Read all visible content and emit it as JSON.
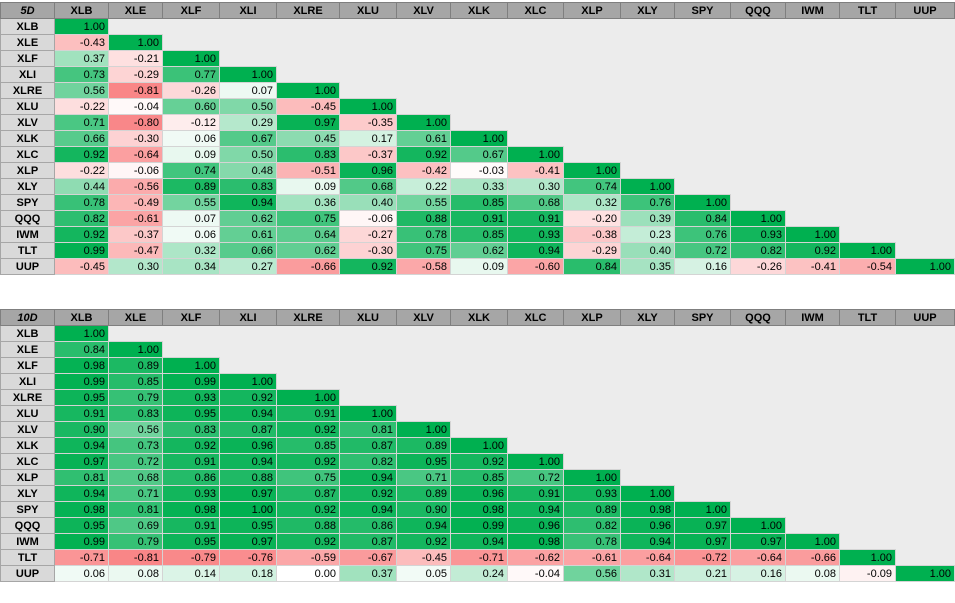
{
  "tickers": [
    "XLB",
    "XLE",
    "XLF",
    "XLI",
    "XLRE",
    "XLU",
    "XLV",
    "XLK",
    "XLC",
    "XLP",
    "XLY",
    "SPY",
    "QQQ",
    "IWM",
    "TLT",
    "UUP"
  ],
  "colors": {
    "header_bg": "#a6a6a6",
    "row_label_bg": "#d9d9d9",
    "empty_bg": "#ececec",
    "positive": "#00b050",
    "negative": "#f8696b",
    "neutral": "#ffffff"
  },
  "tables": [
    {
      "period_label": "5D",
      "rows": [
        [
          "1.00"
        ],
        [
          "-0.43",
          "1.00"
        ],
        [
          "0.37",
          "-0.21",
          "1.00"
        ],
        [
          "0.73",
          "-0.29",
          "0.77",
          "1.00"
        ],
        [
          "0.56",
          "-0.81",
          "-0.26",
          "0.07",
          "1.00"
        ],
        [
          "-0.22",
          "-0.04",
          "0.60",
          "0.50",
          "-0.45",
          "1.00"
        ],
        [
          "0.71",
          "-0.80",
          "-0.12",
          "0.29",
          "0.97",
          "-0.35",
          "1.00"
        ],
        [
          "0.66",
          "-0.30",
          "0.06",
          "0.67",
          "0.45",
          "0.17",
          "0.61",
          "1.00"
        ],
        [
          "0.92",
          "-0.64",
          "0.09",
          "0.50",
          "0.83",
          "-0.37",
          "0.92",
          "0.67",
          "1.00"
        ],
        [
          "-0.22",
          "-0.06",
          "0.74",
          "0.48",
          "-0.51",
          "0.96",
          "-0.42",
          "-0.03",
          "-0.41",
          "1.00"
        ],
        [
          "0.44",
          "-0.56",
          "0.89",
          "0.83",
          "0.09",
          "0.68",
          "0.22",
          "0.33",
          "0.30",
          "0.74",
          "1.00"
        ],
        [
          "0.78",
          "-0.49",
          "0.55",
          "0.94",
          "0.36",
          "0.40",
          "0.55",
          "0.85",
          "0.68",
          "0.32",
          "0.76",
          "1.00"
        ],
        [
          "0.82",
          "-0.61",
          "0.07",
          "0.62",
          "0.75",
          "-0.06",
          "0.88",
          "0.91",
          "0.91",
          "-0.20",
          "0.39",
          "0.84",
          "1.00"
        ],
        [
          "0.92",
          "-0.37",
          "0.06",
          "0.61",
          "0.64",
          "-0.27",
          "0.78",
          "0.85",
          "0.93",
          "-0.38",
          "0.23",
          "0.76",
          "0.93",
          "1.00"
        ],
        [
          "0.99",
          "-0.47",
          "0.32",
          "0.66",
          "0.62",
          "-0.30",
          "0.75",
          "0.62",
          "0.94",
          "-0.29",
          "0.40",
          "0.72",
          "0.82",
          "0.92",
          "1.00"
        ],
        [
          "-0.45",
          "0.30",
          "0.34",
          "0.27",
          "-0.66",
          "0.92",
          "-0.58",
          "0.09",
          "-0.60",
          "0.84",
          "0.35",
          "0.16",
          "-0.26",
          "-0.41",
          "-0.54",
          "1.00"
        ]
      ]
    },
    {
      "period_label": "10D",
      "rows": [
        [
          "1.00"
        ],
        [
          "0.84",
          "1.00"
        ],
        [
          "0.98",
          "0.89",
          "1.00"
        ],
        [
          "0.99",
          "0.85",
          "0.99",
          "1.00"
        ],
        [
          "0.95",
          "0.79",
          "0.93",
          "0.92",
          "1.00"
        ],
        [
          "0.91",
          "0.83",
          "0.95",
          "0.94",
          "0.91",
          "1.00"
        ],
        [
          "0.90",
          "0.56",
          "0.83",
          "0.87",
          "0.92",
          "0.81",
          "1.00"
        ],
        [
          "0.94",
          "0.73",
          "0.92",
          "0.96",
          "0.85",
          "0.87",
          "0.89",
          "1.00"
        ],
        [
          "0.97",
          "0.72",
          "0.91",
          "0.94",
          "0.92",
          "0.82",
          "0.95",
          "0.92",
          "1.00"
        ],
        [
          "0.81",
          "0.68",
          "0.86",
          "0.88",
          "0.75",
          "0.94",
          "0.71",
          "0.85",
          "0.72",
          "1.00"
        ],
        [
          "0.94",
          "0.71",
          "0.93",
          "0.97",
          "0.87",
          "0.92",
          "0.89",
          "0.96",
          "0.91",
          "0.93",
          "1.00"
        ],
        [
          "0.98",
          "0.81",
          "0.98",
          "1.00",
          "0.92",
          "0.94",
          "0.90",
          "0.98",
          "0.94",
          "0.89",
          "0.98",
          "1.00"
        ],
        [
          "0.95",
          "0.69",
          "0.91",
          "0.95",
          "0.88",
          "0.86",
          "0.94",
          "0.99",
          "0.96",
          "0.82",
          "0.96",
          "0.97",
          "1.00"
        ],
        [
          "0.99",
          "0.79",
          "0.95",
          "0.97",
          "0.92",
          "0.87",
          "0.92",
          "0.94",
          "0.98",
          "0.78",
          "0.94",
          "0.97",
          "0.97",
          "1.00"
        ],
        [
          "-0.71",
          "-0.81",
          "-0.79",
          "-0.76",
          "-0.59",
          "-0.67",
          "-0.45",
          "-0.71",
          "-0.62",
          "-0.61",
          "-0.64",
          "-0.72",
          "-0.64",
          "-0.66",
          "1.00"
        ],
        [
          "0.06",
          "0.08",
          "0.14",
          "0.18",
          "0.00",
          "0.37",
          "0.05",
          "0.24",
          "-0.04",
          "0.56",
          "0.31",
          "0.21",
          "0.16",
          "0.08",
          "-0.09",
          "1.00"
        ]
      ]
    }
  ]
}
